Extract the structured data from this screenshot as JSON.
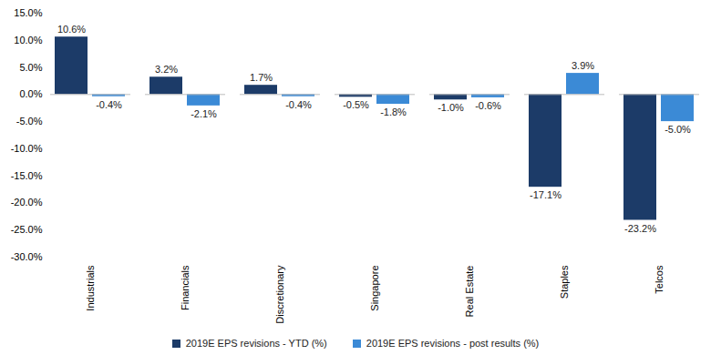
{
  "chart_data": {
    "type": "bar",
    "categories": [
      "Industrials",
      "Financials",
      "Discretionary",
      "Singapore",
      "Real Estate",
      "Staples",
      "Telcos"
    ],
    "series": [
      {
        "name": "2019E EPS revisions - YTD (%)",
        "color": "#1c3b68",
        "values": [
          10.6,
          3.2,
          1.7,
          -0.5,
          -1.0,
          -17.1,
          -23.2
        ],
        "value_labels": [
          "10.6%",
          "3.2%",
          "1.7%",
          "-0.5%",
          "-1.0%",
          "-17.1%",
          "-23.2%"
        ]
      },
      {
        "name": "2019E EPS revisions - post results (%)",
        "color": "#3b8ad6",
        "values": [
          -0.4,
          -2.1,
          -0.4,
          -1.8,
          -0.6,
          3.9,
          -5.0
        ],
        "value_labels": [
          "-0.4%",
          "-2.1%",
          "-0.4%",
          "-1.8%",
          "-0.6%",
          "3.9%",
          "-5.0%"
        ]
      }
    ],
    "ylim": [
      -30,
      15
    ],
    "yticks": [
      {
        "value": -30,
        "label": "-30.0%"
      },
      {
        "value": -25,
        "label": "-25.0%"
      },
      {
        "value": -20,
        "label": "-20.0%"
      },
      {
        "value": -15,
        "label": "-15.0%"
      },
      {
        "value": -10,
        "label": "-10.0%"
      },
      {
        "value": -5,
        "label": "-5.0%"
      },
      {
        "value": 0,
        "label": "0.0%"
      },
      {
        "value": 5,
        "label": "5.0%"
      },
      {
        "value": 10,
        "label": "10.0%"
      },
      {
        "value": 15,
        "label": "15.0%"
      }
    ],
    "grid": false,
    "legend": "bottom",
    "data_labels": true
  }
}
